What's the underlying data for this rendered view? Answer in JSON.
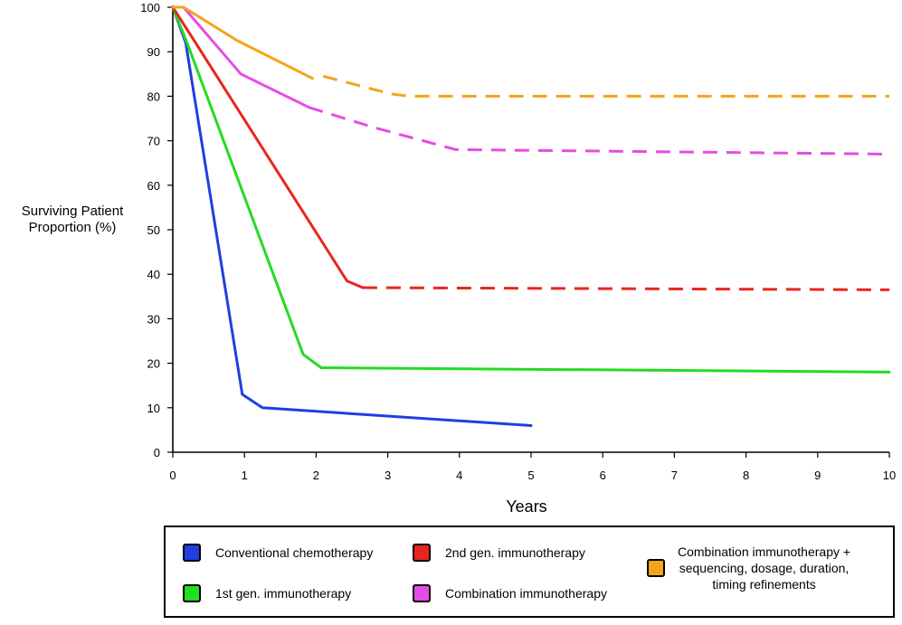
{
  "chart_data": {
    "type": "line",
    "title": "",
    "xlabel": "Years",
    "ylabel": [
      "Surviving Patient",
      "Proportion (%)"
    ],
    "xlim": [
      0,
      10
    ],
    "ylim": [
      0,
      100
    ],
    "x_ticks": [
      "0",
      "1",
      "2",
      "3",
      "4",
      "5",
      "6",
      "7",
      "8",
      "9",
      "10"
    ],
    "y_ticks": [
      "0",
      "10",
      "20",
      "30",
      "40",
      "50",
      "60",
      "70",
      "80",
      "90",
      "100"
    ],
    "grid": false,
    "legend_position": "bottom",
    "series": [
      {
        "name": "Conventional chemotherapy",
        "color": "#1f3fe0",
        "solid": [
          [
            0.0,
            100
          ],
          [
            0.18,
            92
          ],
          [
            0.97,
            13
          ],
          [
            1.25,
            10
          ],
          [
            5.0,
            6
          ]
        ],
        "dashed": []
      },
      {
        "name": "1st gen. immunotherapy",
        "color": "#22dd22",
        "solid": [
          [
            0.0,
            100
          ],
          [
            0.2,
            92
          ],
          [
            1.82,
            22
          ],
          [
            2.07,
            19
          ],
          [
            10.0,
            18
          ]
        ],
        "dashed": []
      },
      {
        "name": "2nd gen. immunotherapy",
        "color": "#e8261e",
        "solid": [
          [
            0.0,
            100
          ],
          [
            0.2,
            95
          ],
          [
            2.43,
            38.5
          ],
          [
            2.65,
            37
          ]
        ],
        "dashed": [
          [
            2.65,
            37
          ],
          [
            10.0,
            36.5
          ]
        ]
      },
      {
        "name": "Combination immunotherapy",
        "color": "#e54ce5",
        "solid": [
          [
            0.0,
            100
          ],
          [
            0.15,
            100
          ],
          [
            0.95,
            85
          ],
          [
            1.9,
            77.5
          ]
        ],
        "dashed": [
          [
            1.9,
            77.5
          ],
          [
            2.0,
            77
          ],
          [
            2.8,
            73
          ],
          [
            3.95,
            68
          ],
          [
            10.0,
            67
          ]
        ]
      },
      {
        "name": "Combination immunotherapy + sequencing, dosage, duration, timing refinements",
        "color": "#f2a51a",
        "solid": [
          [
            0.0,
            100
          ],
          [
            0.15,
            100
          ],
          [
            0.9,
            92.5
          ],
          [
            1.95,
            84
          ]
        ],
        "dashed": [
          [
            2.1,
            84.5
          ],
          [
            3.05,
            80.5
          ],
          [
            3.3,
            80
          ],
          [
            10.0,
            80
          ]
        ]
      }
    ]
  },
  "legend": {
    "chemo": {
      "label": "Conventional chemotherapy",
      "color": "#1f3fe0"
    },
    "gen1": {
      "label": "1st gen. immunotherapy",
      "color": "#22dd22"
    },
    "gen2": {
      "label": "2nd gen. immunotherapy",
      "color": "#e8261e"
    },
    "combo": {
      "label": "Combination immunotherapy",
      "color": "#e54ce5"
    },
    "refined": {
      "lines": [
        "Combination immunotherapy +",
        "sequencing, dosage, duration,",
        "timing refinements"
      ],
      "color": "#f2a51a"
    }
  }
}
